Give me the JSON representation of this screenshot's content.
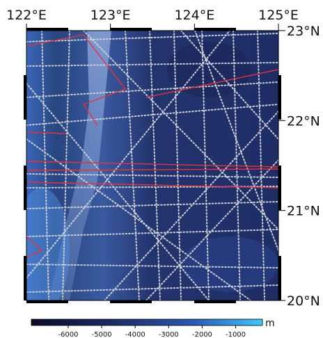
{
  "map": {
    "lon_labels": [
      {
        "value": 122,
        "label": "122°E"
      },
      {
        "value": 123,
        "label": "123°E"
      },
      {
        "value": 124,
        "label": "124°E"
      },
      {
        "value": 125,
        "label": "125°E"
      }
    ],
    "lat_labels": [
      {
        "value": 23,
        "label": "23°N"
      },
      {
        "value": 22,
        "label": "22°N"
      },
      {
        "value": 21,
        "label": "21°N"
      },
      {
        "value": 20,
        "label": "20°N"
      }
    ],
    "lonlim": [
      122,
      125
    ],
    "latlim": [
      20,
      23
    ],
    "colorbar": {
      "lim": [
        -7100,
        -200
      ],
      "ticks": [
        -6000,
        -5000,
        -4000,
        -3000,
        -2000,
        -1000
      ],
      "unit": "m"
    }
  }
}
